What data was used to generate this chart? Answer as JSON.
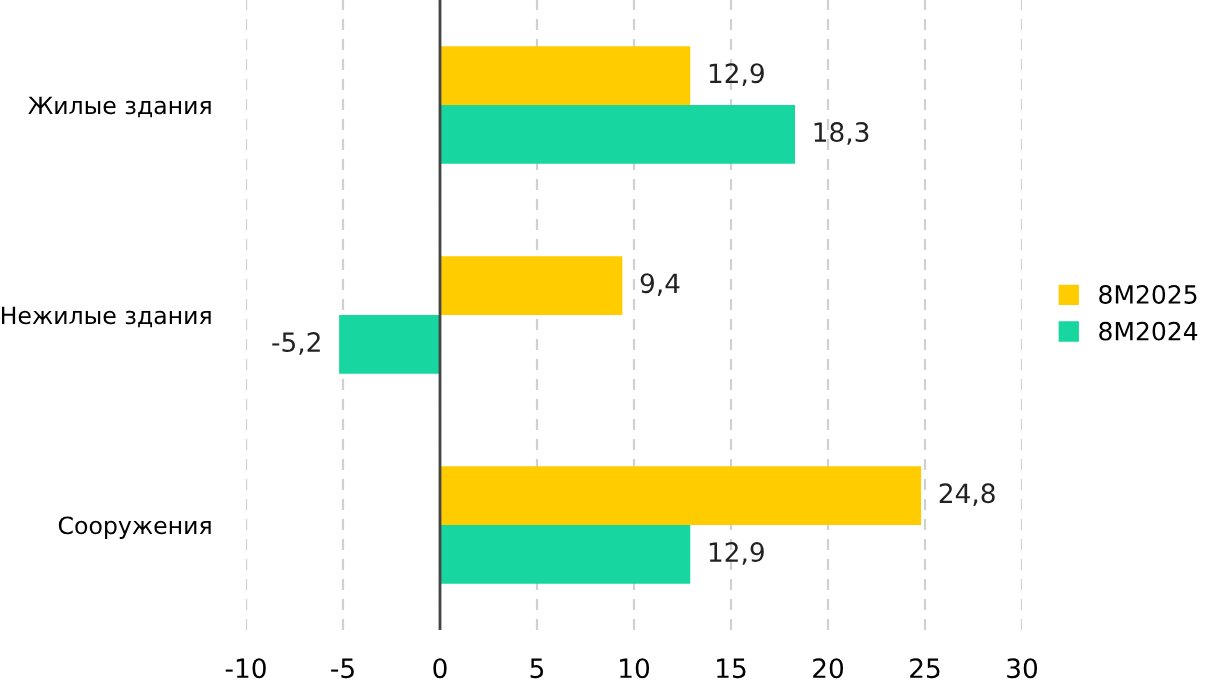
{
  "chart_data": {
    "type": "bar",
    "orientation": "horizontal",
    "categories": [
      "Жилые здания",
      "Нежилые здания",
      "Сооружения"
    ],
    "series": [
      {
        "name": "8M2025",
        "color": "#ffcc00",
        "values": [
          12.9,
          9.4,
          24.8
        ],
        "value_labels": [
          "12,9",
          "9,4",
          "24,8"
        ]
      },
      {
        "name": "8M2024",
        "color": "#17d6a0",
        "values": [
          18.3,
          -5.2,
          12.9
        ],
        "value_labels": [
          "18,3",
          "-5,2",
          "12,9"
        ]
      }
    ],
    "xlim": [
      -10,
      30
    ],
    "xticks": [
      -10,
      -5,
      0,
      5,
      10,
      15,
      20,
      25,
      30
    ],
    "grid": "x",
    "legend": "right"
  }
}
